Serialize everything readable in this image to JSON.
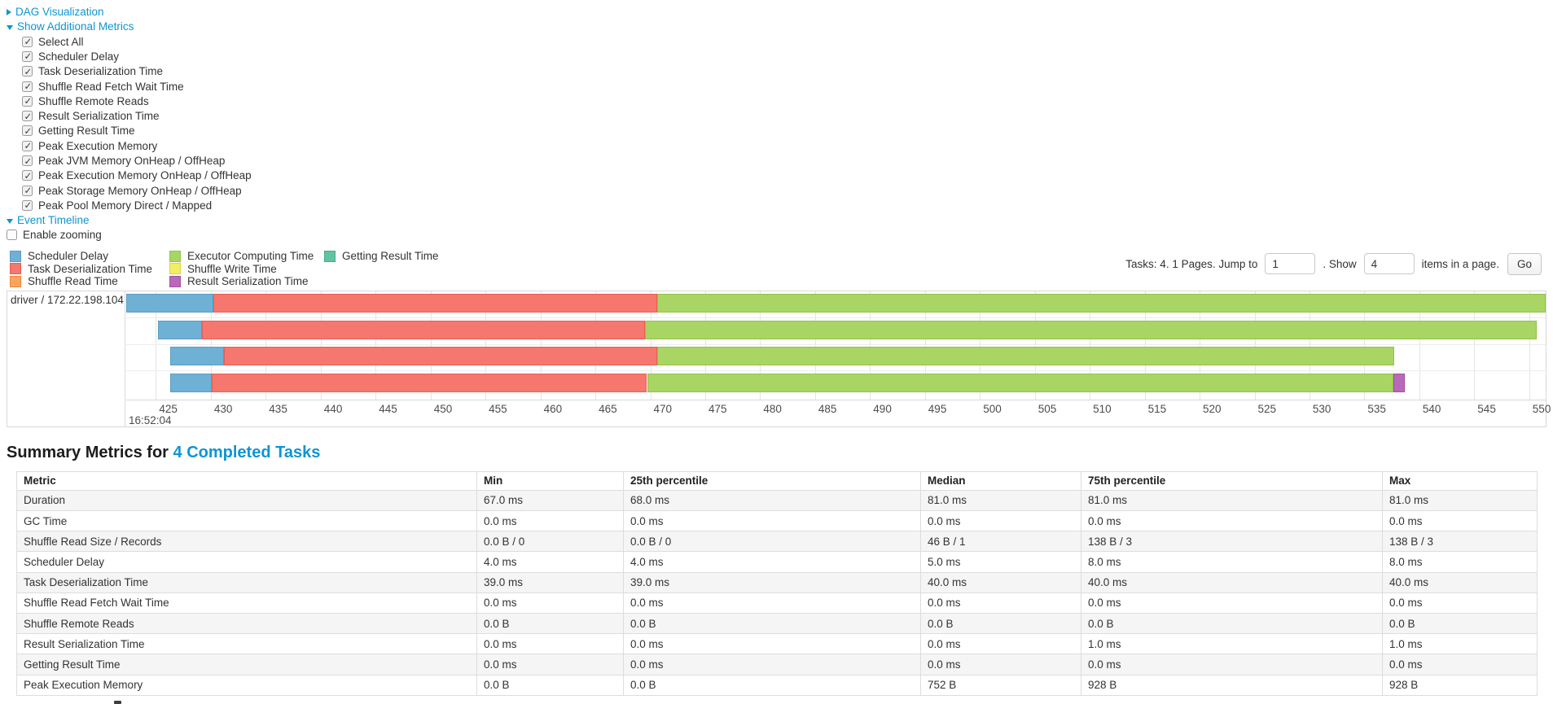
{
  "controls": {
    "dag_label": "DAG Visualization",
    "metrics_label": "Show Additional Metrics",
    "checkboxes": [
      {
        "label": "Select All",
        "checked": true
      },
      {
        "label": "Scheduler Delay",
        "checked": true
      },
      {
        "label": "Task Deserialization Time",
        "checked": true
      },
      {
        "label": "Shuffle Read Fetch Wait Time",
        "checked": true
      },
      {
        "label": "Shuffle Remote Reads",
        "checked": true
      },
      {
        "label": "Result Serialization Time",
        "checked": true
      },
      {
        "label": "Getting Result Time",
        "checked": true
      },
      {
        "label": "Peak Execution Memory",
        "checked": true
      },
      {
        "label": "Peak JVM Memory OnHeap / OffHeap",
        "checked": true
      },
      {
        "label": "Peak Execution Memory OnHeap / OffHeap",
        "checked": true
      },
      {
        "label": "Peak Storage Memory OnHeap / OffHeap",
        "checked": true
      },
      {
        "label": "Peak Pool Memory Direct / Mapped",
        "checked": true
      }
    ],
    "event_timeline_label": "Event Timeline",
    "enable_zooming_label": "Enable zooming",
    "enable_zooming_checked": false
  },
  "colors": {
    "scheduler_delay": {
      "fill": "#6eb1d5",
      "border": "#5a9cc2"
    },
    "task_deserialization": {
      "fill": "#f6776e",
      "border": "#e85f56"
    },
    "shuffle_read": {
      "fill": "#faa45c",
      "border": "#e98a3c"
    },
    "executor_computing": {
      "fill": "#a8d564",
      "border": "#92c348"
    },
    "shuffle_write": {
      "fill": "#f2ed61",
      "border": "#dcd43f"
    },
    "result_serialization": {
      "fill": "#b869b8",
      "border": "#a050a2"
    },
    "getting_result": {
      "fill": "#62c3a2",
      "border": "#48ab89"
    }
  },
  "legend": {
    "columns": [
      [
        {
          "label": "Scheduler Delay",
          "key": "scheduler_delay"
        },
        {
          "label": "Task Deserialization Time",
          "key": "task_deserialization"
        },
        {
          "label": "Shuffle Read Time",
          "key": "shuffle_read"
        }
      ],
      [
        {
          "label": "Executor Computing Time",
          "key": "executor_computing"
        },
        {
          "label": "Shuffle Write Time",
          "key": "shuffle_write"
        },
        {
          "label": "Result Serialization Time",
          "key": "result_serialization"
        }
      ],
      [
        {
          "label": "Getting Result Time",
          "key": "getting_result"
        }
      ]
    ]
  },
  "pagination": {
    "prefix": "Tasks: 4. 1 Pages. Jump to",
    "jump_value": "1",
    "mid": ". Show",
    "show_value": "4",
    "suffix": "items in a page.",
    "go_label": "Go"
  },
  "chart_data": {
    "type": "timeline",
    "group_label": "driver / 172.22.198.104",
    "axis": {
      "min": 422.3,
      "max": 551.5,
      "tick_step": 5,
      "ticks": [
        425,
        430,
        435,
        440,
        445,
        450,
        455,
        460,
        465,
        470,
        475,
        480,
        485,
        490,
        495,
        500,
        505,
        510,
        515,
        520,
        525,
        530,
        535,
        540,
        545,
        550
      ],
      "time_label": "16:52:04",
      "unit": "ms within second 16:52:04"
    },
    "rows": [
      {
        "segments": [
          {
            "key": "scheduler_delay",
            "start": 421.2,
            "end": 430.2
          },
          {
            "key": "task_deserialization",
            "start": 430.2,
            "end": 470.6
          },
          {
            "key": "executor_computing",
            "start": 470.6,
            "end": 552.0
          }
        ]
      },
      {
        "segments": [
          {
            "key": "scheduler_delay",
            "start": 425.2,
            "end": 429.2
          },
          {
            "key": "task_deserialization",
            "start": 429.2,
            "end": 469.5
          },
          {
            "key": "executor_computing",
            "start": 469.5,
            "end": 550.7
          }
        ]
      },
      {
        "segments": [
          {
            "key": "scheduler_delay",
            "start": 426.3,
            "end": 431.2
          },
          {
            "key": "task_deserialization",
            "start": 431.2,
            "end": 470.6
          },
          {
            "key": "executor_computing",
            "start": 470.6,
            "end": 537.7
          }
        ]
      },
      {
        "segments": [
          {
            "key": "scheduler_delay",
            "start": 426.3,
            "end": 430.1
          },
          {
            "key": "task_deserialization",
            "start": 430.1,
            "end": 469.7
          },
          {
            "key": "executor_computing",
            "start": 469.7,
            "end": 537.6
          },
          {
            "key": "result_serialization",
            "start": 537.6,
            "end": 538.7
          }
        ]
      }
    ]
  },
  "summary": {
    "title_prefix": "Summary Metrics for ",
    "title_link": "4 Completed Tasks",
    "table": {
      "headers": [
        "Metric",
        "Min",
        "25th percentile",
        "Median",
        "75th percentile",
        "Max"
      ],
      "rows": [
        {
          "metric": "Duration",
          "values": [
            "67.0 ms",
            "68.0 ms",
            "81.0 ms",
            "81.0 ms",
            "81.0 ms"
          ]
        },
        {
          "metric": "GC Time",
          "values": [
            "0.0 ms",
            "0.0 ms",
            "0.0 ms",
            "0.0 ms",
            "0.0 ms"
          ]
        },
        {
          "metric": "Shuffle Read Size / Records",
          "values": [
            "0.0 B / 0",
            "0.0 B / 0",
            "46 B / 1",
            "138 B / 3",
            "138 B / 3"
          ]
        },
        {
          "metric": "Scheduler Delay",
          "values": [
            "4.0 ms",
            "4.0 ms",
            "5.0 ms",
            "8.0 ms",
            "8.0 ms"
          ]
        },
        {
          "metric": "Task Deserialization Time",
          "values": [
            "39.0 ms",
            "39.0 ms",
            "40.0 ms",
            "40.0 ms",
            "40.0 ms"
          ]
        },
        {
          "metric": "Shuffle Read Fetch Wait Time",
          "values": [
            "0.0 ms",
            "0.0 ms",
            "0.0 ms",
            "0.0 ms",
            "0.0 ms"
          ]
        },
        {
          "metric": "Shuffle Remote Reads",
          "values": [
            "0.0 B",
            "0.0 B",
            "0.0 B",
            "0.0 B",
            "0.0 B"
          ]
        },
        {
          "metric": "Result Serialization Time",
          "values": [
            "0.0 ms",
            "0.0 ms",
            "0.0 ms",
            "1.0 ms",
            "1.0 ms"
          ]
        },
        {
          "metric": "Getting Result Time",
          "values": [
            "0.0 ms",
            "0.0 ms",
            "0.0 ms",
            "0.0 ms",
            "0.0 ms"
          ]
        },
        {
          "metric": "Peak Execution Memory",
          "values": [
            "0.0 B",
            "0.0 B",
            "752 B",
            "928 B",
            "928 B"
          ]
        }
      ]
    }
  }
}
